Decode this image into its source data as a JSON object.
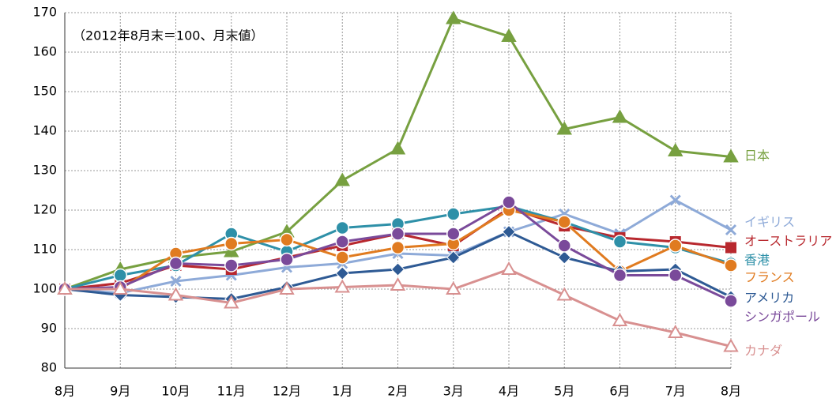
{
  "chart_data": {
    "type": "line",
    "annotation": "（2012年8月末＝100、月末値）",
    "categories": [
      "8月",
      "9月",
      "10月",
      "11月",
      "12月",
      "1月",
      "2月",
      "3月",
      "4月",
      "5月",
      "6月",
      "7月",
      "8月"
    ],
    "series": [
      {
        "name": "日本",
        "color": "#77a040",
        "marker": "triangle",
        "values": [
          100,
          105,
          108,
          109.5,
          114.5,
          127.5,
          135.5,
          168.5,
          164,
          140.5,
          143.5,
          135,
          133.5
        ]
      },
      {
        "name": "イギリス",
        "color": "#8eaad8",
        "marker": "cross",
        "values": [
          100,
          99,
          102,
          103.5,
          105.5,
          106.5,
          109,
          108.5,
          114.5,
          119,
          114,
          122.5,
          115
        ]
      },
      {
        "name": "オーストラリア",
        "color": "#b8282e",
        "marker": "square",
        "values": [
          100,
          101.5,
          106,
          105,
          108,
          111,
          114,
          111,
          120.5,
          116,
          113,
          112,
          110.5
        ]
      },
      {
        "name": "香港",
        "color": "#2e90a8",
        "marker": "circle",
        "values": [
          100,
          103.5,
          106,
          114,
          109.5,
          115.5,
          116.5,
          119,
          121,
          117,
          112,
          110.5,
          106.5
        ]
      },
      {
        "name": "フランス",
        "color": "#e07b20",
        "marker": "circle",
        "values": [
          100,
          100,
          109,
          111.5,
          112.5,
          108,
          110.5,
          111.5,
          120,
          117,
          104.5,
          111,
          106
        ]
      },
      {
        "name": "アメリカ",
        "color": "#2e5a94",
        "marker": "diamond",
        "values": [
          100,
          98.5,
          98,
          97.5,
          100.5,
          104,
          105,
          108,
          114.5,
          108,
          104.5,
          105,
          98
        ]
      },
      {
        "name": "シンガポール",
        "color": "#7a4a9a",
        "marker": "circle",
        "values": [
          100,
          100.5,
          106.5,
          106,
          107.5,
          112,
          114,
          114,
          122,
          111,
          103.5,
          103.5,
          97
        ]
      },
      {
        "name": "カナダ",
        "color": "#d89090",
        "marker": "opentriangle",
        "values": [
          100,
          100,
          98.5,
          96.5,
          100,
          100.5,
          101,
          100,
          105,
          98.5,
          92,
          89,
          85.5
        ]
      }
    ],
    "ylim": [
      80,
      170
    ],
    "yticks": [
      80,
      90,
      100,
      110,
      120,
      130,
      140,
      150,
      160,
      170
    ],
    "grid": true
  }
}
